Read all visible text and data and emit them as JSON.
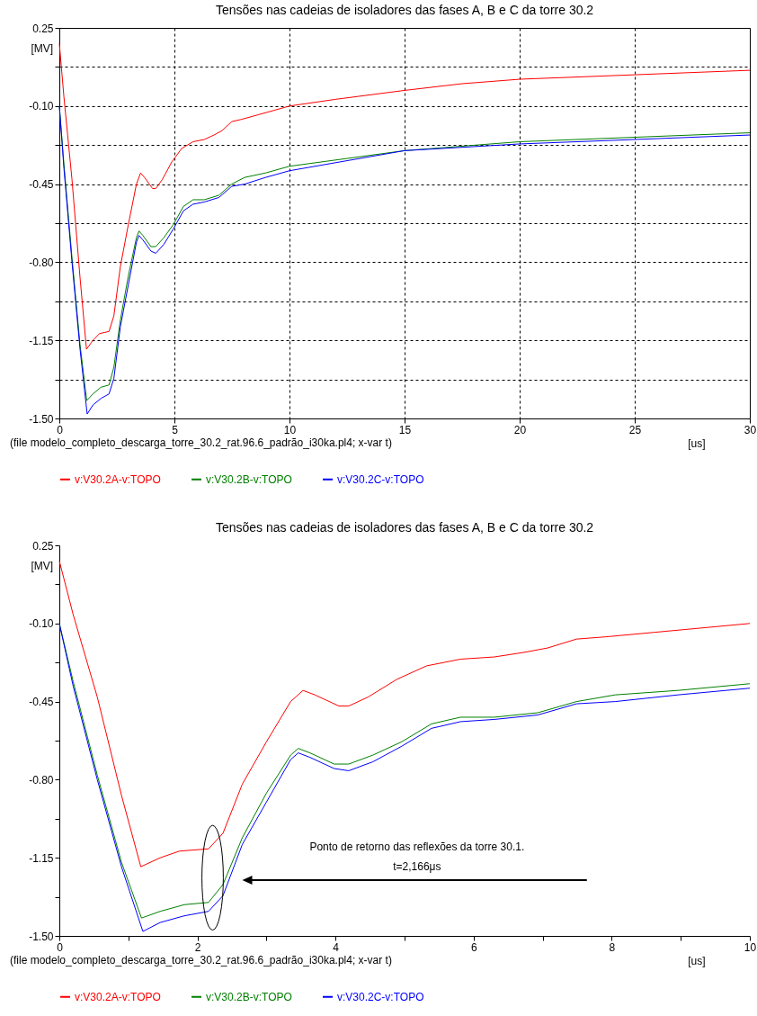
{
  "chart_data": [
    {
      "type": "line",
      "title": "Tensões nas cadeias de isoladores das fases A, B e C da torre 30.2",
      "xlabel": "[us]",
      "ylabel": "[MV]",
      "xlim": [
        0,
        30
      ],
      "xticks": [
        0,
        5,
        10,
        15,
        20,
        25,
        30
      ],
      "ylim": [
        -1.5,
        0.25
      ],
      "yticks": [
        0.25,
        {
          "value": 0.075,
          "label": null
        },
        {
          "value": -0.1,
          "label": "-0.10"
        },
        {
          "value": -0.275,
          "label": null
        },
        {
          "value": -0.45,
          "label": "-0.45"
        },
        {
          "value": -0.625,
          "label": null
        },
        {
          "value": -0.8,
          "label": "-0.80"
        },
        {
          "value": -0.975,
          "label": null
        },
        {
          "value": -1.15,
          "label": "-1.15"
        },
        {
          "value": -1.325,
          "label": null
        },
        {
          "value": -1.5,
          "label": "-1.50"
        }
      ],
      "grid": true,
      "legend": "bottom",
      "annotations": [
        "(file modelo_completo_descarga_torre_30.2_rat.96.6_padrão_i30ka.pl4; x-var t)"
      ],
      "series": [
        {
          "name": "v:V30.2A-v:TOPO",
          "color": "#ff0000",
          "x": [
            0,
            0.2,
            0.55,
            0.9,
            1.18,
            1.46,
            1.74,
            2.16,
            2.37,
            2.65,
            3.0,
            3.35,
            3.53,
            3.7,
            4.05,
            4.19,
            4.47,
            4.89,
            5.32,
            5.81,
            6.3,
            6.72,
            7.07,
            7.49,
            7.91,
            8.61,
            9.31,
            10,
            12,
            15,
            17.5,
            20,
            25,
            30
          ],
          "values": [
            0.18,
            -0.06,
            -0.43,
            -0.87,
            -1.19,
            -1.15,
            -1.12,
            -1.11,
            -1.04,
            -0.82,
            -0.63,
            -0.45,
            -0.4,
            -0.42,
            -0.47,
            -0.47,
            -0.43,
            -0.35,
            -0.29,
            -0.26,
            -0.25,
            -0.23,
            -0.21,
            -0.17,
            -0.16,
            -0.14,
            -0.12,
            -0.1,
            -0.07,
            -0.03,
            0.0,
            0.02,
            0.04,
            0.06
          ]
        },
        {
          "name": "v:V30.2B-v:TOPO",
          "color": "#008000",
          "x": [
            0,
            0.2,
            0.55,
            0.9,
            1.19,
            1.46,
            1.81,
            2.16,
            2.37,
            2.65,
            3.0,
            3.35,
            3.46,
            3.63,
            3.98,
            4.19,
            4.54,
            4.96,
            5.39,
            5.81,
            6.3,
            6.93,
            7.49,
            8.05,
            8.96,
            10,
            15,
            20,
            25,
            30
          ],
          "values": [
            -0.1,
            -0.36,
            -0.78,
            -1.17,
            -1.42,
            -1.39,
            -1.36,
            -1.35,
            -1.27,
            -1.06,
            -0.86,
            -0.69,
            -0.66,
            -0.68,
            -0.73,
            -0.73,
            -0.69,
            -0.63,
            -0.55,
            -0.52,
            -0.52,
            -0.5,
            -0.45,
            -0.42,
            -0.4,
            -0.37,
            -0.3,
            -0.26,
            -0.24,
            -0.22
          ]
        },
        {
          "name": "v:V30.2C-v:TOPO",
          "color": "#0000ff",
          "x": [
            0,
            0.2,
            0.55,
            0.9,
            1.21,
            1.46,
            1.81,
            2.16,
            2.37,
            2.65,
            3.0,
            3.35,
            3.46,
            3.63,
            3.98,
            4.19,
            4.54,
            4.96,
            5.39,
            5.81,
            6.3,
            6.93,
            7.49,
            8.05,
            8.96,
            10,
            15,
            20,
            25,
            30
          ],
          "values": [
            -0.1,
            -0.38,
            -0.8,
            -1.19,
            -1.48,
            -1.44,
            -1.41,
            -1.39,
            -1.32,
            -1.09,
            -0.9,
            -0.71,
            -0.68,
            -0.7,
            -0.75,
            -0.76,
            -0.72,
            -0.65,
            -0.57,
            -0.54,
            -0.53,
            -0.51,
            -0.46,
            -0.45,
            -0.42,
            -0.39,
            -0.3,
            -0.27,
            -0.25,
            -0.23
          ]
        }
      ]
    },
    {
      "type": "line",
      "title": "Tensões nas cadeias de isoladores das fases A, B e C da torre 30.2",
      "xlabel": "[us]",
      "ylabel": "[MV]",
      "xlim": [
        0,
        10
      ],
      "xticks": [
        0,
        {
          "value": 1,
          "label": null
        },
        2,
        {
          "value": 3,
          "label": null
        },
        4,
        {
          "value": 5,
          "label": null
        },
        6,
        {
          "value": 7,
          "label": null
        },
        8,
        {
          "value": 9,
          "label": null
        },
        10
      ],
      "ylim": [
        -1.5,
        0.25
      ],
      "yticks": [
        0.25,
        {
          "value": 0.075,
          "label": null
        },
        {
          "value": -0.1,
          "label": "-0.10"
        },
        {
          "value": -0.275,
          "label": null
        },
        {
          "value": -0.45,
          "label": "-0.45"
        },
        {
          "value": -0.625,
          "label": null
        },
        {
          "value": -0.8,
          "label": "-0.80"
        },
        {
          "value": -0.975,
          "label": null
        },
        {
          "value": -1.15,
          "label": "-1.15"
        },
        {
          "value": -1.325,
          "label": null
        },
        {
          "value": -1.5,
          "label": "-1.50"
        }
      ],
      "legend": "bottom",
      "annotations": [
        "Ponto de retorno das reflexões da torre 30.1.\nt=2,166μs",
        "(file modelo_completo_descarga_torre_30.2_rat.96.6_padrão_i30ka.pl4; x-var t)"
      ],
      "series": [
        {
          "name": "v:V30.2A-v:TOPO",
          "color": "#ff0000",
          "x": [
            0,
            0.2,
            0.55,
            0.9,
            1.18,
            1.46,
            1.74,
            2.16,
            2.37,
            2.65,
            3.0,
            3.35,
            3.53,
            3.7,
            4.05,
            4.19,
            4.47,
            4.89,
            5.32,
            5.81,
            6.3,
            6.72,
            7.07,
            7.49,
            7.91,
            8.61,
            9.31,
            10
          ],
          "values": [
            0.18,
            -0.06,
            -0.43,
            -0.87,
            -1.19,
            -1.15,
            -1.12,
            -1.11,
            -1.04,
            -0.82,
            -0.63,
            -0.45,
            -0.4,
            -0.42,
            -0.47,
            -0.47,
            -0.43,
            -0.35,
            -0.29,
            -0.26,
            -0.25,
            -0.23,
            -0.21,
            -0.17,
            -0.16,
            -0.14,
            -0.12,
            -0.1
          ]
        },
        {
          "name": "v:V30.2B-v:TOPO",
          "color": "#008000",
          "x": [
            0,
            0.2,
            0.55,
            0.9,
            1.19,
            1.46,
            1.81,
            2.16,
            2.37,
            2.65,
            3.0,
            3.35,
            3.46,
            3.63,
            3.98,
            4.19,
            4.54,
            4.96,
            5.39,
            5.81,
            6.3,
            6.93,
            7.49,
            8.05,
            8.96,
            10
          ],
          "values": [
            -0.1,
            -0.36,
            -0.78,
            -1.17,
            -1.42,
            -1.39,
            -1.36,
            -1.35,
            -1.27,
            -1.06,
            -0.86,
            -0.69,
            -0.66,
            -0.68,
            -0.73,
            -0.73,
            -0.69,
            -0.63,
            -0.55,
            -0.52,
            -0.52,
            -0.5,
            -0.45,
            -0.42,
            -0.4,
            -0.37
          ]
        },
        {
          "name": "v:V30.2C-v:TOPO",
          "color": "#0000ff",
          "x": [
            0,
            0.2,
            0.55,
            0.9,
            1.21,
            1.46,
            1.81,
            2.16,
            2.37,
            2.65,
            3.0,
            3.35,
            3.46,
            3.63,
            3.98,
            4.19,
            4.54,
            4.96,
            5.39,
            5.81,
            6.3,
            6.93,
            7.49,
            8.05,
            8.96,
            10
          ],
          "values": [
            -0.1,
            -0.38,
            -0.8,
            -1.19,
            -1.48,
            -1.44,
            -1.41,
            -1.39,
            -1.32,
            -1.09,
            -0.9,
            -0.71,
            -0.68,
            -0.7,
            -0.75,
            -0.76,
            -0.72,
            -0.65,
            -0.57,
            -0.54,
            -0.53,
            -0.51,
            -0.46,
            -0.45,
            -0.42,
            -0.39
          ]
        }
      ]
    }
  ]
}
